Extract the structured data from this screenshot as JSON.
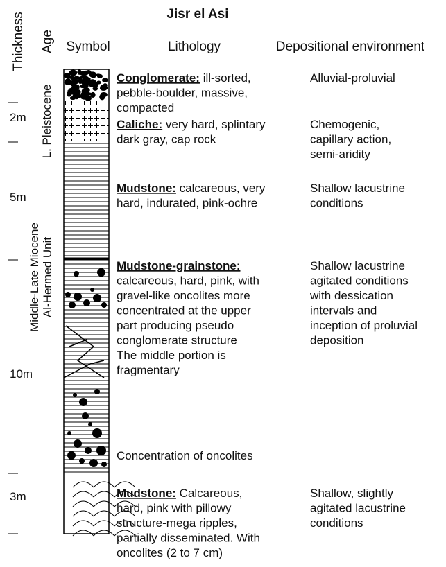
{
  "header": {
    "title": "Jisr el Asi",
    "columns": {
      "thickness": "Thickness",
      "age": "Age",
      "symbol": "Symbol",
      "lithology": "Lithology",
      "environment": "Depositional environment"
    }
  },
  "thickness": [
    "2m",
    "5m",
    "10m",
    "3m"
  ],
  "ages": [
    "L. Pleistocene",
    "Middle-Late Miocene",
    "Al-Hermed Unit"
  ],
  "lithology": [
    {
      "name": "Conglomerate:",
      "text": " ill-sorted,",
      "lines": [
        "pebble-boulder, massive,",
        "compacted"
      ]
    },
    {
      "name": "Caliche:",
      "text": " very hard, splintary",
      "lines": [
        "dark gray, cap rock"
      ]
    },
    {
      "name": "Mudstone:",
      "text": " calcareous, very",
      "lines": [
        "hard, indurated, pink-ochre"
      ]
    },
    {
      "name": "Mudstone-grainstone:",
      "lines": [
        "calcareous, hard, pink, with",
        "gravel-like oncolites more",
        "concentrated at the upper",
        "part producing pseudo",
        "conglomerate structure",
        "The middle portion is",
        "fragmentary"
      ]
    },
    {
      "name": "Mudstone:",
      "text": " Calcareous,",
      "lines": [
        "hard, pink with pillowy",
        "structure-mega ripples,",
        "partially disseminated. With",
        "oncolites (2 to 7 cm)"
      ]
    }
  ],
  "annotation": "Concentration of oncolites",
  "environment": [
    [
      "Alluvial-proluvial"
    ],
    [
      "Chemogenic,",
      "capillary action,",
      "semi-aridity"
    ],
    [
      "Shallow lacustrine",
      "conditions"
    ],
    [
      "Shallow lacustrine",
      "agitated conditions",
      "with dessication",
      "intervals and",
      "inception of proluvial",
      "deposition"
    ],
    [
      "Shallow, slightly",
      "agitated lacustrine",
      "conditions"
    ]
  ]
}
